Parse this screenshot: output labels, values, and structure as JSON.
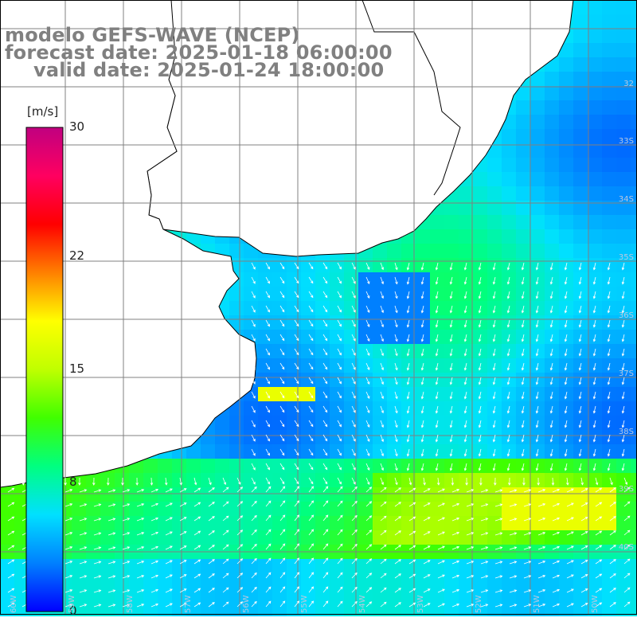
{
  "title": {
    "model": "modelo GEFS-WAVE (NCEP)",
    "forecast_date": "forecast date: 2025-01-18 06:00:00",
    "valid_date": "valid date: 2025-01-24 18:00:00"
  },
  "colorbar": {
    "unit": "[m/s]",
    "min": 0,
    "max": 30,
    "ticks": [
      "30",
      "22",
      "15",
      "8",
      "0"
    ],
    "tick_values": [
      30,
      22,
      15,
      8,
      0
    ],
    "palette": [
      "#0000ff",
      "#0080ff",
      "#00e0ff",
      "#00ff80",
      "#40ff00",
      "#c0ff00",
      "#ffff00",
      "#ff8000",
      "#ff0000",
      "#ff0060",
      "#c00080"
    ],
    "orientation": "vertical"
  },
  "map": {
    "variable": "wind speed",
    "background_color": "#ffffff",
    "land_color": "#ffffff",
    "coastline_color": "#000000",
    "gridline_color": "#808080",
    "vector_color": "#ffffff",
    "grid": true,
    "lat_labels": [
      "32",
      "33S",
      "34S",
      "35S",
      "36S",
      "37S",
      "38S",
      "39S",
      "40S"
    ],
    "lon_labels": [
      "60W",
      "59W",
      "58W",
      "57W",
      "56W",
      "55W",
      "54W",
      "53W",
      "52W",
      "51W",
      "50W"
    ]
  }
}
